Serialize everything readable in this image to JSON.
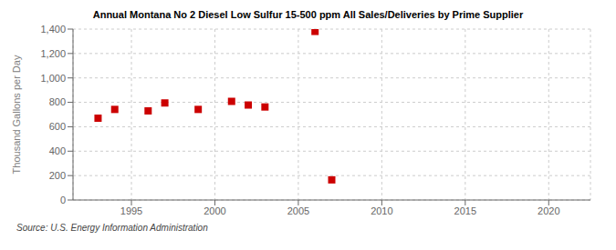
{
  "chart_data": {
    "type": "scatter",
    "title": "Annual Montana No 2 Diesel Low Sulfur 15-500 ppm All Sales/Deliveries by Prime Supplier",
    "ylabel": "Thousand Gallons per Day",
    "annotations": [
      "Source: U.S. Energy Information Administration"
    ],
    "x": [
      1993,
      1994,
      1996,
      1997,
      1999,
      2001,
      2002,
      2003,
      2006,
      2007
    ],
    "values": [
      670,
      742,
      730,
      795,
      742,
      808,
      778,
      762,
      1381,
      165
    ],
    "color": "#cc0000",
    "marker": "square",
    "xlim": [
      1991.5,
      2022.5
    ],
    "xticks": [
      1995,
      2000,
      2005,
      2010,
      2015,
      2020
    ],
    "ylim": [
      0,
      1400
    ],
    "yticks": [
      0,
      200,
      400,
      600,
      800,
      {
        "value": 1000,
        "label": "1,000"
      },
      {
        "value": 1200,
        "label": "1,200"
      },
      {
        "value": 1400,
        "label": "1,400"
      }
    ],
    "grid": true
  }
}
